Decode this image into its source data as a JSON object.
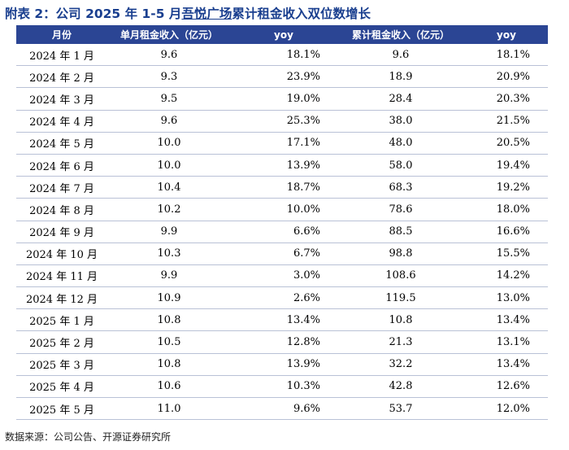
{
  "title_main": "附表 2：公司 2025 年 1-5 月",
  "title_u": "吾悦广场",
  "title_tail": "累计租金收入双位数增长",
  "headers": [
    "月份",
    "单月租金收入（亿元）",
    "yoy",
    "累计租金收入（亿元）",
    "yoy"
  ],
  "rows": [
    [
      "2024 年 1 月",
      "9.6",
      "18.1%",
      "9.6",
      "18.1%"
    ],
    [
      "2024 年 2 月",
      "9.3",
      "23.9%",
      "18.9",
      "20.9%"
    ],
    [
      "2024 年 3 月",
      "9.5",
      "19.0%",
      "28.4",
      "20.3%"
    ],
    [
      "2024 年 4 月",
      "9.6",
      "25.3%",
      "38.0",
      "21.5%"
    ],
    [
      "2024 年 5 月",
      "10.0",
      "17.1%",
      "48.0",
      "20.5%"
    ],
    [
      "2024 年 6 月",
      "10.0",
      "13.9%",
      "58.0",
      "19.4%"
    ],
    [
      "2024 年 7 月",
      "10.4",
      "18.7%",
      "68.3",
      "19.2%"
    ],
    [
      "2024 年 8 月",
      "10.2",
      "10.0%",
      "78.6",
      "18.0%"
    ],
    [
      "2024 年 9 月",
      "9.9",
      "6.6%",
      "88.5",
      "16.6%"
    ],
    [
      "2024 年 10 月",
      "10.3",
      "6.7%",
      "98.8",
      "15.5%"
    ],
    [
      "2024 年 11 月",
      "9.9",
      "3.0%",
      "108.6",
      "14.2%"
    ],
    [
      "2024 年 12 月",
      "10.9",
      "2.6%",
      "119.5",
      "13.0%"
    ],
    [
      "2025 年 1 月",
      "10.8",
      "13.4%",
      "10.8",
      "13.4%"
    ],
    [
      "2025 年 2 月",
      "10.5",
      "12.8%",
      "21.3",
      "13.1%"
    ],
    [
      "2025 年 3 月",
      "10.8",
      "13.9%",
      "32.2",
      "13.4%"
    ],
    [
      "2025 年 4 月",
      "10.6",
      "10.3%",
      "42.8",
      "12.6%"
    ],
    [
      "2025 年 5 月",
      "11.0",
      "9.6%",
      "53.7",
      "12.0%"
    ]
  ],
  "source": "数据来源：公司公告、开源证券研究所",
  "colors": {
    "title": "#1a3f8f",
    "header_bg": "#2b4594",
    "row_line": "#b9c1d6"
  }
}
